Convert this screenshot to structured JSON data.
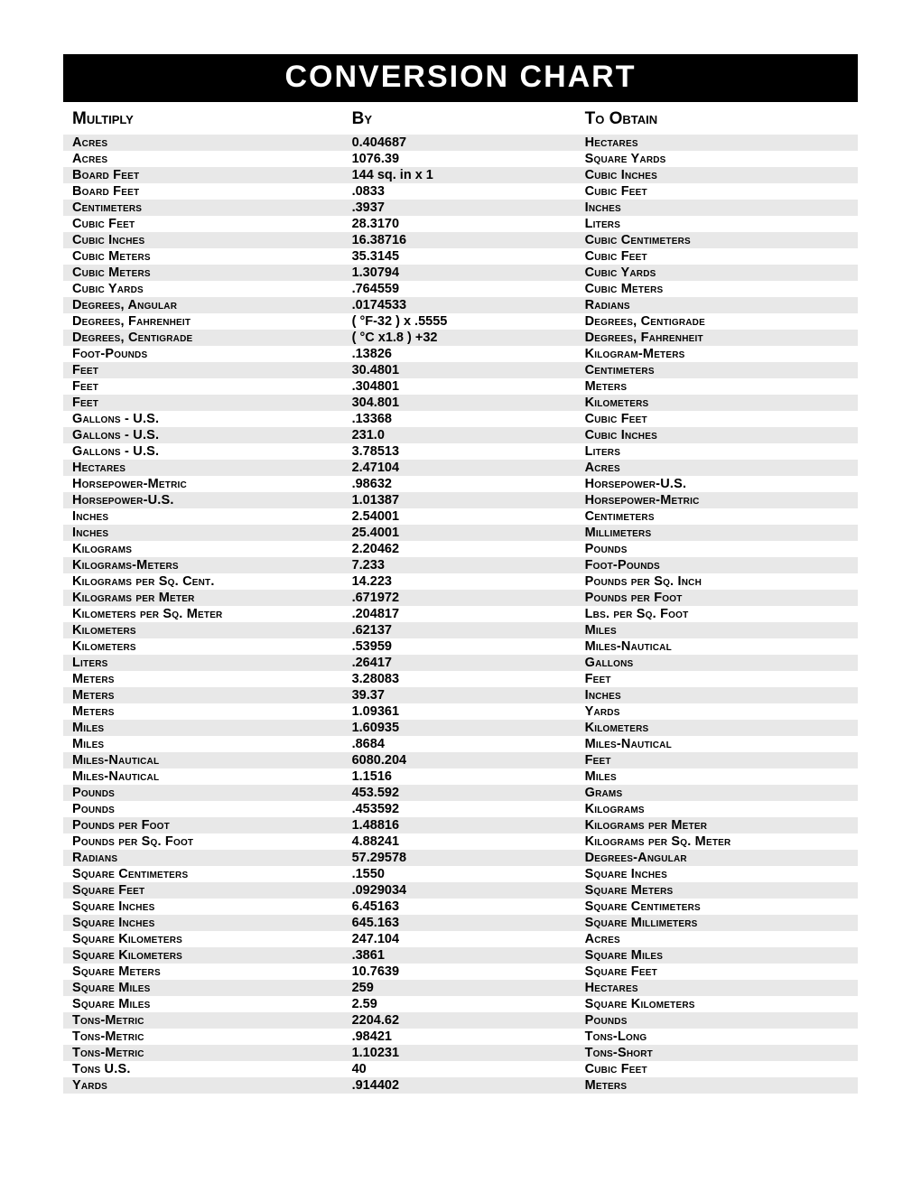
{
  "title": "CONVERSION CHART",
  "headers": {
    "c1": "Multiply",
    "c2": "By",
    "c3": "To Obtain"
  },
  "rows": [
    {
      "c1": "Acres",
      "c2": "0.404687",
      "c3": "Hectares"
    },
    {
      "c1": "Acres",
      "c2": "1076.39",
      "c3": "Square Yards"
    },
    {
      "c1": "Board Feet",
      "c2": "144 sq. in x 1",
      "c3": "Cubic Inches"
    },
    {
      "c1": "Board Feet",
      "c2": ".0833",
      "c3": "Cubic Feet"
    },
    {
      "c1": "Centimeters",
      "c2": ".3937",
      "c3": "Inches"
    },
    {
      "c1": "Cubic Feet",
      "c2": "28.3170",
      "c3": "Liters"
    },
    {
      "c1": "Cubic Inches",
      "c2": "16.38716",
      "c3": "Cubic Centimeters"
    },
    {
      "c1": "Cubic Meters",
      "c2": "35.3145",
      "c3": "Cubic Feet"
    },
    {
      "c1": "Cubic Meters",
      "c2": "1.30794",
      "c3": "Cubic Yards"
    },
    {
      "c1": "Cubic Yards",
      "c2": ".764559",
      "c3": "Cubic Meters"
    },
    {
      "c1": "Degrees, Angular",
      "c2": ".0174533",
      "c3": "Radians"
    },
    {
      "c1": "Degrees, Fahrenheit",
      "c2": "( °F-32 ) x .5555",
      "c3": "Degrees, Centigrade"
    },
    {
      "c1": "Degrees, Centigrade",
      "c2": "( °C x1.8 ) +32",
      "c3": "Degrees, Fahrenheit"
    },
    {
      "c1": "Foot-Pounds",
      "c2": ".13826",
      "c3": "Kilogram-Meters"
    },
    {
      "c1": "Feet",
      "c2": "30.4801",
      "c3": "Centimeters"
    },
    {
      "c1": "Feet",
      "c2": ".304801",
      "c3": "Meters"
    },
    {
      "c1": "Feet",
      "c2": "304.801",
      "c3": "Kilometers"
    },
    {
      "c1": "Gallons - U.S.",
      "c2": ".13368",
      "c3": "Cubic Feet"
    },
    {
      "c1": "Gallons - U.S.",
      "c2": "231.0",
      "c3": "Cubic Inches"
    },
    {
      "c1": "Gallons - U.S.",
      "c2": "3.78513",
      "c3": "Liters"
    },
    {
      "c1": "Hectares",
      "c2": "2.47104",
      "c3": "Acres"
    },
    {
      "c1": "Horsepower-Metric",
      "c2": ".98632",
      "c3": "Horsepower-U.S."
    },
    {
      "c1": "Horsepower-U.S.",
      "c2": "1.01387",
      "c3": "Horsepower-Metric"
    },
    {
      "c1": "Inches",
      "c2": "2.54001",
      "c3": "Centimeters"
    },
    {
      "c1": "Inches",
      "c2": "25.4001",
      "c3": "Millimeters"
    },
    {
      "c1": "Kilograms",
      "c2": "2.20462",
      "c3": "Pounds"
    },
    {
      "c1": "Kilograms-Meters",
      "c2": "7.233",
      "c3": "Foot-Pounds"
    },
    {
      "c1": "Kilograms per Sq. Cent.",
      "c2": "14.223",
      "c3": "Pounds per Sq. Inch"
    },
    {
      "c1": "Kilograms per Meter",
      "c2": ".671972",
      "c3": "Pounds per Foot"
    },
    {
      "c1": "Kilometers per Sq. Meter",
      "c2": ".204817",
      "c3": "Lbs. per Sq. Foot"
    },
    {
      "c1": "Kilometers",
      "c2": ".62137",
      "c3": "Miles"
    },
    {
      "c1": "Kilometers",
      "c2": ".53959",
      "c3": "Miles-Nautical"
    },
    {
      "c1": "Liters",
      "c2": ".26417",
      "c3": "Gallons"
    },
    {
      "c1": "Meters",
      "c2": "3.28083",
      "c3": "Feet"
    },
    {
      "c1": "Meters",
      "c2": "39.37",
      "c3": "Inches"
    },
    {
      "c1": "Meters",
      "c2": "1.09361",
      "c3": "Yards"
    },
    {
      "c1": "Miles",
      "c2": "1.60935",
      "c3": "Kilometers"
    },
    {
      "c1": "Miles",
      "c2": ".8684",
      "c3": "Miles-Nautical"
    },
    {
      "c1": "Miles-Nautical",
      "c2": "6080.204",
      "c3": "Feet"
    },
    {
      "c1": "Miles-Nautical",
      "c2": "1.1516",
      "c3": "Miles"
    },
    {
      "c1": "Pounds",
      "c2": "453.592",
      "c3": "Grams"
    },
    {
      "c1": "Pounds",
      "c2": ".453592",
      "c3": "Kilograms"
    },
    {
      "c1": "Pounds per Foot",
      "c2": "1.48816",
      "c3": "Kilograms per Meter"
    },
    {
      "c1": "Pounds per Sq. Foot",
      "c2": "4.88241",
      "c3": "Kilograms per Sq. Meter"
    },
    {
      "c1": "Radians",
      "c2": "57.29578",
      "c3": "Degrees-Angular"
    },
    {
      "c1": "Square Centimeters",
      "c2": ".1550",
      "c3": "Square Inches"
    },
    {
      "c1": "Square Feet",
      "c2": ".0929034",
      "c3": "Square Meters"
    },
    {
      "c1": "Square Inches",
      "c2": "6.45163",
      "c3": "Square Centimeters"
    },
    {
      "c1": "Square Inches",
      "c2": "645.163",
      "c3": "Square Millimeters"
    },
    {
      "c1": "Square Kilometers",
      "c2": "247.104",
      "c3": "Acres"
    },
    {
      "c1": "Square Kilometers",
      "c2": ".3861",
      "c3": "Square Miles"
    },
    {
      "c1": "Square Meters",
      "c2": "10.7639",
      "c3": "Square Feet"
    },
    {
      "c1": "Square Miles",
      "c2": "259",
      "c3": "Hectares"
    },
    {
      "c1": "Square Miles",
      "c2": "2.59",
      "c3": "Square Kilometers"
    },
    {
      "c1": "Tons-Metric",
      "c2": "2204.62",
      "c3": "Pounds"
    },
    {
      "c1": "Tons-Metric",
      "c2": ".98421",
      "c3": "Tons-Long"
    },
    {
      "c1": "Tons-Metric",
      "c2": "1.10231",
      "c3": "Tons-Short"
    },
    {
      "c1": "Tons U.S.",
      "c2": "40",
      "c3": "Cubic Feet"
    },
    {
      "c1": "Yards",
      "c2": ".914402",
      "c3": "Meters"
    }
  ],
  "style": {
    "title_bg": "#000000",
    "title_fg": "#ffffff",
    "row_odd_bg": "#e8e8e8",
    "row_even_bg": "#ffffff",
    "font_body": "14.5",
    "font_header": "19",
    "font_title": "34"
  }
}
